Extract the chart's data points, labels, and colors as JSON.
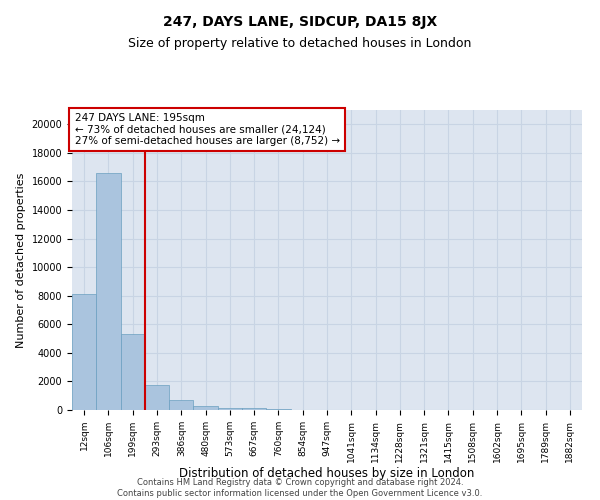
{
  "title": "247, DAYS LANE, SIDCUP, DA15 8JX",
  "subtitle": "Size of property relative to detached houses in London",
  "xlabel": "Distribution of detached houses by size in London",
  "ylabel": "Number of detached properties",
  "annotation_line1": "247 DAYS LANE: 195sqm",
  "annotation_line2": "← 73% of detached houses are smaller (24,124)",
  "annotation_line3": "27% of semi-detached houses are larger (8,752) →",
  "footer_line1": "Contains HM Land Registry data © Crown copyright and database right 2024.",
  "footer_line2": "Contains public sector information licensed under the Open Government Licence v3.0.",
  "bar_labels": [
    "12sqm",
    "106sqm",
    "199sqm",
    "293sqm",
    "386sqm",
    "480sqm",
    "573sqm",
    "667sqm",
    "760sqm",
    "854sqm",
    "947sqm",
    "1041sqm",
    "1134sqm",
    "1228sqm",
    "1321sqm",
    "1415sqm",
    "1508sqm",
    "1602sqm",
    "1695sqm",
    "1789sqm",
    "1882sqm"
  ],
  "bar_heights": [
    8100,
    16600,
    5300,
    1750,
    700,
    280,
    170,
    130,
    80,
    0,
    0,
    0,
    0,
    0,
    0,
    0,
    0,
    0,
    0,
    0,
    0
  ],
  "bar_color": "#aac4de",
  "bar_edge_color": "#6a9fc0",
  "grid_color": "#c8d4e4",
  "background_color": "#dde5f0",
  "vline_color": "#cc0000",
  "vline_x_index": 2,
  "ylim": [
    0,
    21000
  ],
  "yticks": [
    0,
    2000,
    4000,
    6000,
    8000,
    10000,
    12000,
    14000,
    16000,
    18000,
    20000
  ],
  "annotation_box_color": "#cc0000",
  "title_fontsize": 10,
  "subtitle_fontsize": 9,
  "axis_label_fontsize": 8.5,
  "tick_fontsize": 6.5,
  "annotation_fontsize": 7.5,
  "ylabel_fontsize": 8
}
